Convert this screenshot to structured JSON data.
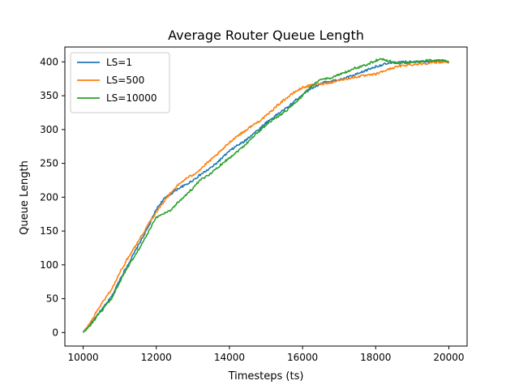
{
  "chart_data": {
    "type": "line",
    "title": "Average Router Queue Length",
    "xlabel": "Timesteps (ts)",
    "ylabel": "Queue Length",
    "xlim": [
      9500,
      20500
    ],
    "ylim": [
      -20,
      422
    ],
    "xticks": [
      10000,
      12000,
      14000,
      16000,
      18000,
      20000
    ],
    "yticks": [
      0,
      50,
      100,
      150,
      200,
      250,
      300,
      350,
      400
    ],
    "grid": false,
    "legend_position": "top-left",
    "series": [
      {
        "name": "LS=1",
        "color": "#1f77b4",
        "x": [
          10000,
          10200,
          10400,
          10600,
          10800,
          11000,
          11200,
          11400,
          11600,
          11800,
          12000,
          12200,
          12400,
          12600,
          12800,
          13000,
          13200,
          13400,
          13600,
          13800,
          14000,
          14200,
          14400,
          14600,
          14800,
          15000,
          15200,
          15400,
          15600,
          15800,
          16000,
          16200,
          16400,
          16600,
          16800,
          17000,
          17200,
          17400,
          17600,
          17800,
          18000,
          18200,
          18400,
          18600,
          18800,
          19000,
          19200,
          19400,
          19600,
          19800,
          20000
        ],
        "y": [
          0,
          12,
          27,
          40,
          55,
          78,
          98,
          118,
          138,
          158,
          182,
          197,
          205,
          213,
          218,
          225,
          233,
          240,
          248,
          258,
          268,
          276,
          282,
          292,
          300,
          310,
          318,
          326,
          333,
          343,
          352,
          360,
          365,
          370,
          372,
          373,
          377,
          380,
          384,
          389,
          393,
          396,
          398,
          399,
          400,
          400,
          401,
          401,
          401,
          402,
          400
        ]
      },
      {
        "name": "LS=500",
        "color": "#ff7f0e",
        "x": [
          10000,
          10200,
          10400,
          10600,
          10800,
          11000,
          11200,
          11400,
          11600,
          11800,
          12000,
          12200,
          12400,
          12600,
          12800,
          13000,
          13200,
          13400,
          13600,
          13800,
          14000,
          14200,
          14400,
          14600,
          14800,
          15000,
          15200,
          15400,
          15600,
          15800,
          16000,
          16200,
          16400,
          16600,
          16800,
          17000,
          17200,
          17400,
          17600,
          17800,
          18000,
          18200,
          18400,
          18600,
          18800,
          19000,
          19200,
          19400,
          19600,
          19800,
          20000
        ],
        "y": [
          0,
          15,
          34,
          50,
          66,
          88,
          108,
          126,
          143,
          162,
          178,
          193,
          207,
          218,
          227,
          233,
          241,
          251,
          260,
          270,
          281,
          290,
          297,
          305,
          312,
          320,
          330,
          340,
          348,
          356,
          362,
          365,
          367,
          368,
          370,
          373,
          375,
          377,
          379,
          380,
          382,
          386,
          390,
          393,
          395,
          396,
          397,
          398,
          399,
          400,
          400
        ]
      },
      {
        "name": "LS=10000",
        "color": "#2ca02c",
        "x": [
          10000,
          10200,
          10400,
          10600,
          10800,
          11000,
          11200,
          11400,
          11600,
          11800,
          12000,
          12200,
          12400,
          12600,
          12800,
          13000,
          13200,
          13400,
          13600,
          13800,
          14000,
          14200,
          14400,
          14600,
          14800,
          15000,
          15200,
          15400,
          15600,
          15800,
          16000,
          16200,
          16400,
          16600,
          16800,
          17000,
          17200,
          17400,
          17600,
          17800,
          18000,
          18200,
          18400,
          18600,
          18800,
          19000,
          19200,
          19400,
          19600,
          19800,
          20000
        ],
        "y": [
          0,
          11,
          25,
          38,
          52,
          75,
          95,
          113,
          130,
          150,
          170,
          176,
          181,
          193,
          203,
          213,
          225,
          232,
          240,
          250,
          258,
          267,
          276,
          287,
          297,
          307,
          315,
          322,
          330,
          340,
          350,
          362,
          371,
          375,
          377,
          381,
          385,
          390,
          393,
          397,
          402,
          404,
          401,
          398,
          398,
          400,
          400,
          402,
          402,
          403,
          399
        ]
      }
    ]
  }
}
